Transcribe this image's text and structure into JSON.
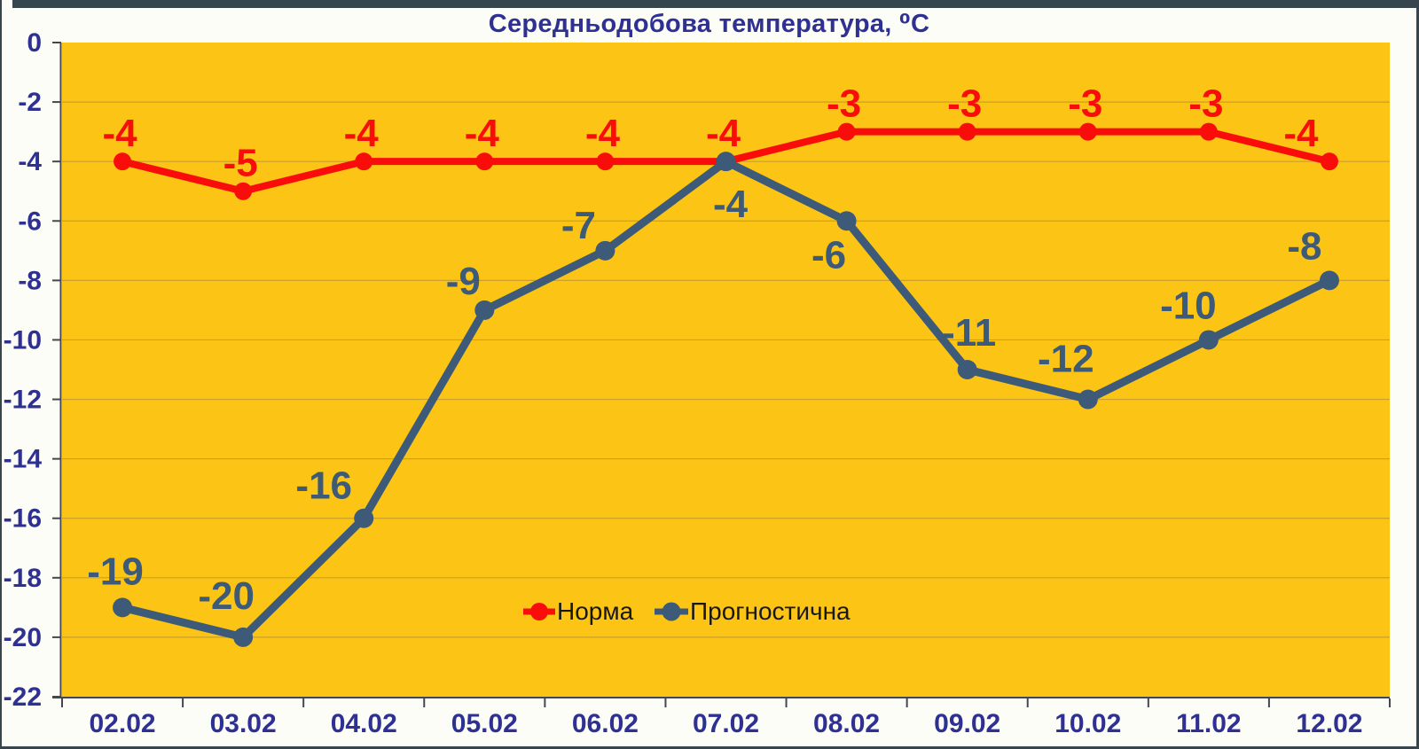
{
  "title": "Середньодобова температура, ⁰С",
  "chart_data": {
    "type": "line",
    "title": "Середньодобова температура, ⁰С",
    "categories": [
      "02.02",
      "03.02",
      "04.02",
      "05.02",
      "06.02",
      "07.02",
      "08.02",
      "09.02",
      "10.02",
      "11.02",
      "12.02"
    ],
    "series": [
      {
        "name": "Норма",
        "color": "#f90d0b",
        "values": [
          -4,
          -5,
          -4,
          -4,
          -4,
          -4,
          -3,
          -3,
          -3,
          -3,
          -4
        ],
        "line_width": 8,
        "marker": "circle",
        "marker_radius": 10,
        "label_default_offset": {
          "dx": -3,
          "dy": -32
        },
        "label_offsets": {
          "10": {
            "dx": -32,
            "dy": -32
          }
        }
      },
      {
        "name": "Прогностична",
        "color": "#3d5a78",
        "values": [
          -19,
          -20,
          -16,
          -9,
          -7,
          -4,
          -6,
          -11,
          -12,
          -10,
          -8
        ],
        "line_width": 9,
        "marker": "circle",
        "marker_radius": 11,
        "label_default_offset": {
          "dx": -25,
          "dy": -40
        },
        "label_offsets": {
          "0": {
            "dx": -8,
            "dy": -41
          },
          "1": {
            "dx": -19,
            "dy": -47
          },
          "2": {
            "dx": -45,
            "dy": -37
          },
          "3": {
            "dx": -24,
            "dy": -33
          },
          "4": {
            "dx": -30,
            "dy": -29
          },
          "5": {
            "dx": 5,
            "dy": 48
          },
          "6": {
            "dx": -20,
            "dy": 38
          },
          "7": {
            "dx": 2,
            "dy": -42
          },
          "8": {
            "dx": -25,
            "dy": -46
          },
          "9": {
            "dx": -23,
            "dy": -39
          },
          "10": {
            "dx": -28,
            "dy": -39
          }
        }
      }
    ],
    "xlabel": "",
    "ylabel": "",
    "ylim": [
      -22,
      0
    ],
    "y_ticks": [
      0,
      -2,
      -4,
      -6,
      -8,
      -10,
      -12,
      -14,
      -16,
      -18,
      -20,
      -22
    ],
    "grid": true,
    "legend_position": "bottom-center-inside",
    "data_label_font_size": 44,
    "axis_label_font_size": 30
  },
  "colors": {
    "page_background": "#fdfdf7",
    "window_chrome": "#36454e",
    "plot_background": "#fcc516",
    "gridline": "#c8a02b",
    "axis_line": "#44484c",
    "tick_label": "#2e3192",
    "title_text": "#2e3192",
    "legend_text": "#181818",
    "norm_series": "#f90d0b",
    "forecast_series": "#3d5a78"
  }
}
